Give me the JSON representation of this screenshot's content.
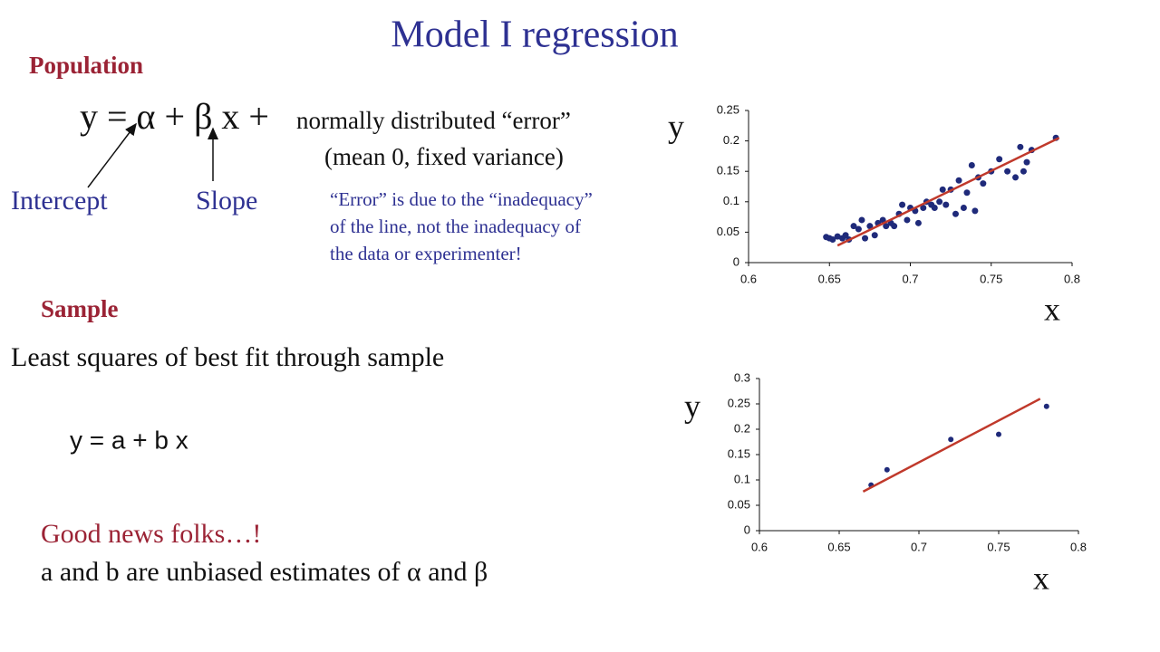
{
  "title": "Model I regression",
  "population": {
    "heading": "Population",
    "equation": "y = α + β x +",
    "equation_rest": "normally distributed “error”",
    "equation_note": "(mean 0, fixed variance)",
    "intercept": "Intercept",
    "slope": "Slope",
    "note": [
      "“Error” is due to the “inadequacy”",
      "of the line, not the inadequacy of",
      "the data or experimenter!"
    ]
  },
  "sample": {
    "heading": "Sample",
    "text": "Least squares of best fit through sample",
    "equation": "y = a + b x",
    "good_news": "Good news folks…!",
    "conclusion": "a and b are unbiased estimates of α and β"
  },
  "chart_data": [
    {
      "type": "scatter",
      "x_label": "x",
      "y_label": "y",
      "color": "#1f2a7a",
      "fit_color": "#c0392b",
      "xlim": [
        0.6,
        0.8
      ],
      "xticks": [
        0.6,
        0.65,
        0.7,
        0.75,
        0.8
      ],
      "ylim": [
        0,
        0.25
      ],
      "yticks": [
        0,
        0.05,
        0.1,
        0.15,
        0.2,
        0.25
      ],
      "x": [
        0.648,
        0.65,
        0.652,
        0.655,
        0.658,
        0.66,
        0.662,
        0.665,
        0.668,
        0.67,
        0.672,
        0.675,
        0.678,
        0.68,
        0.683,
        0.685,
        0.688,
        0.69,
        0.693,
        0.695,
        0.698,
        0.7,
        0.703,
        0.705,
        0.708,
        0.71,
        0.713,
        0.715,
        0.718,
        0.72,
        0.722,
        0.725,
        0.728,
        0.73,
        0.733,
        0.735,
        0.738,
        0.74,
        0.742,
        0.745,
        0.75,
        0.755,
        0.76,
        0.765,
        0.768,
        0.77,
        0.772,
        0.775,
        0.79
      ],
      "y": [
        0.042,
        0.04,
        0.038,
        0.043,
        0.04,
        0.045,
        0.038,
        0.06,
        0.055,
        0.07,
        0.04,
        0.06,
        0.045,
        0.065,
        0.07,
        0.06,
        0.065,
        0.06,
        0.08,
        0.095,
        0.07,
        0.09,
        0.085,
        0.065,
        0.09,
        0.1,
        0.095,
        0.09,
        0.1,
        0.12,
        0.095,
        0.12,
        0.08,
        0.135,
        0.09,
        0.115,
        0.16,
        0.085,
        0.14,
        0.13,
        0.15,
        0.17,
        0.15,
        0.14,
        0.19,
        0.15,
        0.165,
        0.185,
        0.205
      ],
      "fit": {
        "x": [
          0.655,
          0.792
        ],
        "y": [
          0.028,
          0.205
        ]
      }
    },
    {
      "type": "scatter",
      "x_label": "x",
      "y_label": "y",
      "color": "#1f2a7a",
      "fit_color": "#c0392b",
      "xlim": [
        0.6,
        0.8
      ],
      "xticks": [
        0.6,
        0.65,
        0.7,
        0.75,
        0.8
      ],
      "ylim": [
        0,
        0.3
      ],
      "yticks": [
        0,
        0.05,
        0.1,
        0.15,
        0.2,
        0.25,
        0.3
      ],
      "x": [
        0.67,
        0.68,
        0.72,
        0.75,
        0.78
      ],
      "y": [
        0.09,
        0.12,
        0.18,
        0.19,
        0.245
      ],
      "fit": {
        "x": [
          0.665,
          0.776
        ],
        "y": [
          0.077,
          0.26
        ]
      }
    }
  ]
}
